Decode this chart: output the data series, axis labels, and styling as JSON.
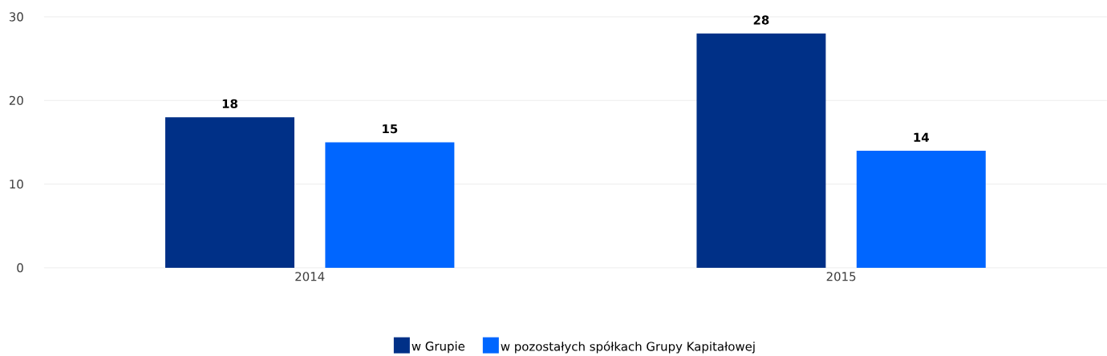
{
  "chart_data": {
    "type": "bar",
    "categories": [
      "2014",
      "2015"
    ],
    "series": [
      {
        "name": "w Grupie",
        "color": "#003087",
        "values": [
          18,
          28
        ]
      },
      {
        "name": "w pozostałych spółkach Grupy Kapitałowej",
        "color": "#0066ff",
        "values": [
          15,
          14
        ]
      }
    ],
    "ylim": [
      0,
      30
    ],
    "yticks": [
      0,
      10,
      20,
      30
    ],
    "grid": "y",
    "legend": "bottom",
    "data_labels": true
  }
}
